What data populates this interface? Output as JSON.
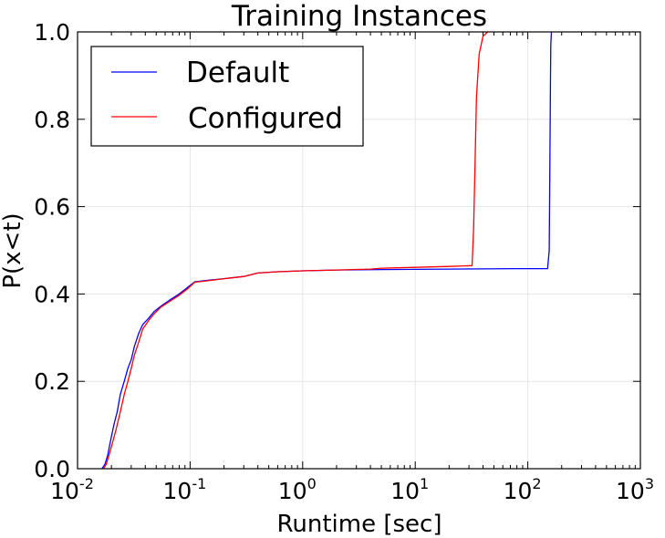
{
  "chart_data": {
    "type": "line",
    "title": "Training Instances",
    "xlabel": "Runtime [sec]",
    "ylabel": "P(x<t)",
    "xscale": "log",
    "xlim": [
      0.01,
      1000
    ],
    "ylim": [
      0.0,
      1.0
    ],
    "grid": true,
    "legend_position": "top-left",
    "x_ticks": [
      {
        "base": "10",
        "exp": "-2",
        "value": 0.01
      },
      {
        "base": "10",
        "exp": "-1",
        "value": 0.1
      },
      {
        "base": "10",
        "exp": "0",
        "value": 1
      },
      {
        "base": "10",
        "exp": "1",
        "value": 10
      },
      {
        "base": "10",
        "exp": "2",
        "value": 100
      },
      {
        "base": "10",
        "exp": "3",
        "value": 1000
      }
    ],
    "y_ticks": [
      {
        "label": "0.0",
        "value": 0.0
      },
      {
        "label": "0.2",
        "value": 0.2
      },
      {
        "label": "0.4",
        "value": 0.4
      },
      {
        "label": "0.6",
        "value": 0.6
      },
      {
        "label": "0.8",
        "value": 0.8
      },
      {
        "label": "1.0",
        "value": 1.0
      }
    ],
    "series": [
      {
        "name": "Default",
        "color": "#0000ff",
        "points": [
          [
            0.0165,
            0.0
          ],
          [
            0.0175,
            0.01
          ],
          [
            0.0185,
            0.03
          ],
          [
            0.0195,
            0.06
          ],
          [
            0.021,
            0.1
          ],
          [
            0.0225,
            0.13
          ],
          [
            0.024,
            0.17
          ],
          [
            0.026,
            0.2
          ],
          [
            0.028,
            0.23
          ],
          [
            0.03,
            0.25
          ],
          [
            0.032,
            0.28
          ],
          [
            0.035,
            0.31
          ],
          [
            0.038,
            0.33
          ],
          [
            0.043,
            0.345
          ],
          [
            0.048,
            0.36
          ],
          [
            0.055,
            0.372
          ],
          [
            0.065,
            0.385
          ],
          [
            0.08,
            0.4
          ],
          [
            0.095,
            0.415
          ],
          [
            0.11,
            0.428
          ],
          [
            0.15,
            0.432
          ],
          [
            0.2,
            0.435
          ],
          [
            0.3,
            0.44
          ],
          [
            0.4,
            0.448
          ],
          [
            0.6,
            0.451
          ],
          [
            1.0,
            0.453
          ],
          [
            2.0,
            0.455
          ],
          [
            5.0,
            0.456
          ],
          [
            20.0,
            0.457
          ],
          [
            80.0,
            0.458
          ],
          [
            150.0,
            0.458
          ],
          [
            155.0,
            0.5
          ],
          [
            157.0,
            0.7
          ],
          [
            159.0,
            0.9
          ],
          [
            160.0,
            0.97
          ],
          [
            162.0,
            1.0
          ]
        ]
      },
      {
        "name": "Configured",
        "color": "#ff0000",
        "points": [
          [
            0.017,
            0.0
          ],
          [
            0.018,
            0.01
          ],
          [
            0.019,
            0.03
          ],
          [
            0.02,
            0.05
          ],
          [
            0.022,
            0.09
          ],
          [
            0.024,
            0.13
          ],
          [
            0.026,
            0.17
          ],
          [
            0.028,
            0.2
          ],
          [
            0.03,
            0.23
          ],
          [
            0.032,
            0.26
          ],
          [
            0.035,
            0.29
          ],
          [
            0.038,
            0.32
          ],
          [
            0.043,
            0.34
          ],
          [
            0.048,
            0.355
          ],
          [
            0.055,
            0.37
          ],
          [
            0.065,
            0.382
          ],
          [
            0.08,
            0.397
          ],
          [
            0.095,
            0.412
          ],
          [
            0.11,
            0.427
          ],
          [
            0.15,
            0.431
          ],
          [
            0.2,
            0.435
          ],
          [
            0.3,
            0.44
          ],
          [
            0.4,
            0.448
          ],
          [
            0.6,
            0.451
          ],
          [
            1.0,
            0.453
          ],
          [
            2.0,
            0.455
          ],
          [
            4.0,
            0.457
          ],
          [
            5.0,
            0.459
          ],
          [
            10.0,
            0.461
          ],
          [
            20.0,
            0.463
          ],
          [
            32.0,
            0.465
          ],
          [
            33.0,
            0.55
          ],
          [
            34.0,
            0.7
          ],
          [
            35.0,
            0.85
          ],
          [
            37.0,
            0.95
          ],
          [
            40.0,
            0.99
          ],
          [
            44.0,
            1.0
          ]
        ]
      }
    ]
  }
}
